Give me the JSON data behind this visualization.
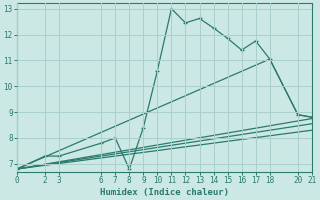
{
  "xlabel": "Humidex (Indice chaleur)",
  "background_color": "#cce8e4",
  "grid_color": "#aacfcb",
  "line_color": "#2a7a6e",
  "xlim": [
    0,
    21
  ],
  "ylim": [
    6.7,
    13.2
  ],
  "yticks": [
    7,
    8,
    9,
    10,
    11,
    12,
    13
  ],
  "xticks": [
    0,
    2,
    3,
    6,
    7,
    8,
    9,
    10,
    11,
    12,
    13,
    14,
    15,
    16,
    17,
    18,
    20,
    21
  ],
  "line1_x": [
    0,
    2,
    3,
    6,
    7,
    8,
    9,
    10,
    11,
    12,
    13,
    14,
    15,
    16,
    17,
    18,
    20,
    21
  ],
  "line1_y": [
    6.8,
    7.3,
    7.3,
    7.8,
    8.0,
    6.8,
    8.4,
    10.6,
    13.0,
    12.45,
    12.62,
    12.25,
    11.85,
    11.4,
    11.75,
    11.05,
    8.9,
    8.8
  ],
  "line2_x": [
    0,
    18,
    20,
    21
  ],
  "line2_y": [
    6.8,
    11.05,
    8.9,
    8.8
  ],
  "line3_x": [
    0,
    21
  ],
  "line3_y": [
    6.8,
    8.75
  ],
  "line4_x": [
    0,
    21
  ],
  "line4_y": [
    6.8,
    8.55
  ],
  "line5_x": [
    0,
    21
  ],
  "line5_y": [
    6.8,
    8.3
  ]
}
